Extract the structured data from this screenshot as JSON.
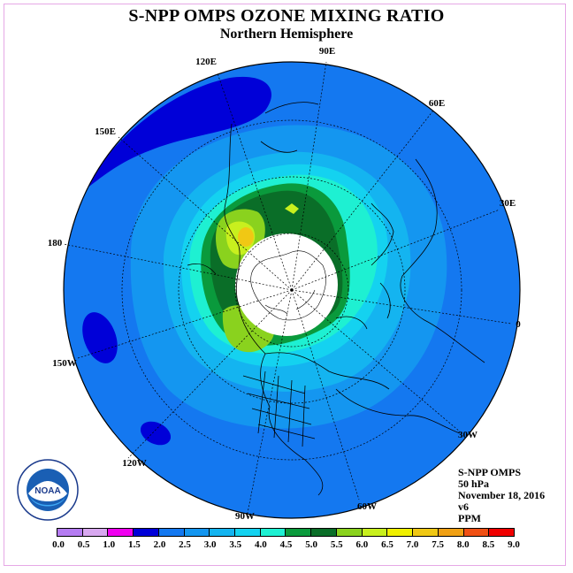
{
  "title": "S-NPP OMPS OZONE MIXING RATIO",
  "subtitle": "Northern Hemisphere",
  "info": {
    "instrument": "S-NPP OMPS",
    "level": "50 hPa",
    "date": "November 18, 2016",
    "version": "v6",
    "units": "PPM"
  },
  "longitude_labels": [
    "90E",
    "60E",
    "30E",
    "0",
    "30W",
    "60W",
    "90W",
    "120W",
    "150W",
    "180",
    "150E",
    "120E"
  ],
  "colorbar": {
    "ticks": [
      "0.0",
      "0.5",
      "1.0",
      "1.5",
      "2.0",
      "2.5",
      "3.0",
      "3.5",
      "4.0",
      "4.5",
      "5.0",
      "5.5",
      "6.0",
      "6.5",
      "7.0",
      "7.5",
      "8.0",
      "8.5",
      "9.0"
    ],
    "colors": [
      "#b57cf2",
      "#d8a8f0",
      "#f000f0",
      "#0000d8",
      "#1478f0",
      "#1496f0",
      "#14b4f0",
      "#14d2f0",
      "#1ef0d2",
      "#0a9a3c",
      "#0a6e28",
      "#8ad21e",
      "#c8f01e",
      "#f0f000",
      "#f0c814",
      "#f0a014",
      "#f05014",
      "#f00000",
      "#8c5a46"
    ]
  },
  "logo": {
    "text": "NOAA",
    "ring_text": "NATIONAL OCEANIC AND ATMOSPHERIC ADMINISTRATION · U.S. DEPARTMENT OF COMMERCE"
  },
  "colors": {
    "background_field": "#1478f0",
    "no_data_disc": "#ffffff",
    "frame": "#e6a8e6"
  }
}
